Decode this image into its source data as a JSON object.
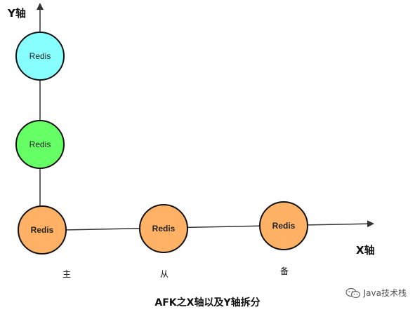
{
  "axes": {
    "y_label": "Y轴",
    "x_label": "X轴"
  },
  "nodes": {
    "y1": {
      "label": "Redis",
      "fill": "#88ffff"
    },
    "y2": {
      "label": "Redis",
      "fill": "#66ff66"
    },
    "origin": {
      "label": "Redis",
      "fill": "#ffb266"
    },
    "x1": {
      "label": "Redis",
      "fill": "#ffb266"
    },
    "x2": {
      "label": "Redis",
      "fill": "#ffb266"
    }
  },
  "roles": {
    "primary": "主",
    "replica": "从",
    "standby": "备"
  },
  "caption": "AFK之X轴以及Y轴拆分",
  "watermark": {
    "text": "Java技术栈",
    "icon": "wechat-icon"
  },
  "colors": {
    "stroke": "#111111",
    "axis": "#333333"
  }
}
